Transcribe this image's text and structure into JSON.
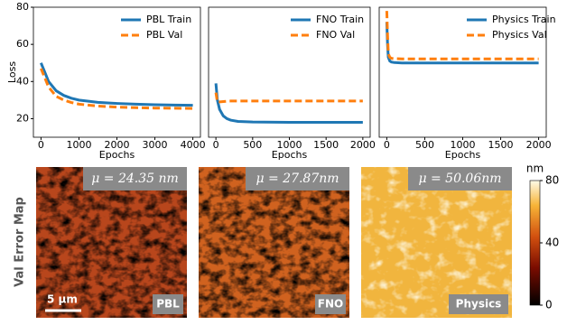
{
  "chart_data": [
    {
      "type": "line",
      "ylabel": "Loss",
      "xlabel": "Epochs",
      "legend": "upper right",
      "x": [
        0,
        100,
        200,
        400,
        600,
        800,
        1000,
        1500,
        2000,
        2500,
        3000,
        3500,
        4000
      ],
      "xlim": [
        -200,
        4200
      ],
      "xticks": [
        0,
        1000,
        2000,
        3000,
        4000
      ],
      "ylim": [
        10,
        80
      ],
      "yticks": [
        20,
        40,
        60,
        80
      ],
      "series": [
        {
          "name": "PBL Train",
          "color": "#1f77b4",
          "style": "solid",
          "values": [
            50,
            45,
            40,
            35,
            32.5,
            31,
            30,
            28.8,
            28.2,
            27.8,
            27.5,
            27.3,
            27.2
          ]
        },
        {
          "name": "PBL Val",
          "color": "#ff7f0e",
          "style": "dashed",
          "values": [
            47,
            42,
            37,
            32,
            30,
            28.7,
            27.8,
            26.8,
            26.2,
            25.9,
            25.7,
            25.6,
            25.5
          ]
        }
      ]
    },
    {
      "type": "line",
      "xlabel": "Epochs",
      "legend": "upper right",
      "x": [
        0,
        20,
        50,
        100,
        150,
        200,
        300,
        500,
        1000,
        1500,
        2000
      ],
      "xlim": [
        -100,
        2100
      ],
      "xticks": [
        0,
        500,
        1000,
        1500,
        2000
      ],
      "ylim": [
        10,
        80
      ],
      "series": [
        {
          "name": "FNO Train",
          "color": "#1f77b4",
          "style": "solid",
          "values": [
            39,
            30,
            25,
            21.5,
            20,
            19.2,
            18.5,
            18.2,
            18,
            18,
            18
          ]
        },
        {
          "name": "FNO Val",
          "color": "#ff7f0e",
          "style": "dashed",
          "values": [
            34,
            29,
            29,
            29.2,
            29.4,
            29.5,
            29.5,
            29.5,
            29.5,
            29.5,
            29.5
          ]
        }
      ]
    },
    {
      "type": "line",
      "xlabel": "Epochs",
      "legend": "upper right",
      "x": [
        0,
        10,
        20,
        40,
        60,
        100,
        200,
        500,
        1000,
        2000
      ],
      "xlim": [
        -100,
        2100
      ],
      "xticks": [
        0,
        500,
        1000,
        1500,
        2000
      ],
      "ylim": [
        10,
        80
      ],
      "series": [
        {
          "name": "Physics Train",
          "color": "#1f77b4",
          "style": "solid",
          "values": [
            72,
            60,
            53,
            51,
            50.5,
            50.2,
            50,
            50,
            50,
            50
          ]
        },
        {
          "name": "Physics Val",
          "color": "#ff7f0e",
          "style": "dashed",
          "values": [
            78,
            65,
            55,
            53,
            52.5,
            52.3,
            52.2,
            52.2,
            52.2,
            52.2
          ]
        }
      ]
    }
  ],
  "figure": {
    "row_label": "Val Error Map",
    "scale_bar": "5 μm",
    "maps": [
      {
        "mean_label": "μ = 24.35 nm",
        "label": "PBL"
      },
      {
        "mean_label": "μ = 27.87nm",
        "label": "FNO"
      },
      {
        "mean_label": "μ = 50.06nm",
        "label": "Physics"
      }
    ],
    "colorbar": {
      "title": "nm",
      "lim": [
        0,
        80
      ],
      "ticks": [
        0,
        40,
        80
      ]
    }
  }
}
